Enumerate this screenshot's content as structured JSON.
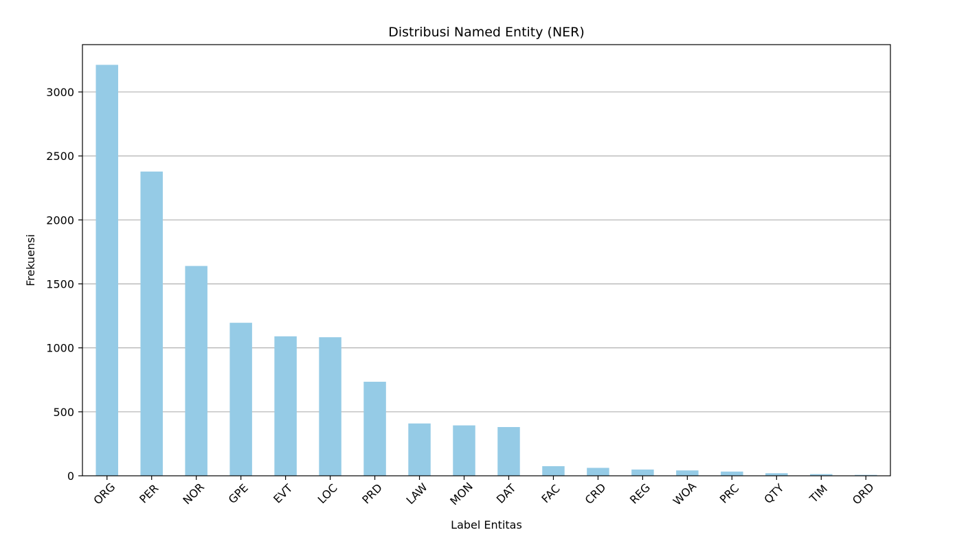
{
  "chart_data": {
    "type": "bar",
    "title": "Distribusi Named Entity (NER)",
    "xlabel": "Label Entitas",
    "ylabel": "Frekuensi",
    "categories": [
      "ORG",
      "PER",
      "NOR",
      "GPE",
      "EVT",
      "LOC",
      "PRD",
      "LAW",
      "MON",
      "DAT",
      "FAC",
      "CRD",
      "REG",
      "WOA",
      "PRC",
      "QTY",
      "TIM",
      "ORD"
    ],
    "values": [
      3212,
      2378,
      1640,
      1196,
      1090,
      1083,
      735,
      409,
      394,
      381,
      75,
      62,
      49,
      42,
      33,
      20,
      13,
      7
    ],
    "yticks": [
      0,
      500,
      1000,
      1500,
      2000,
      2500,
      3000
    ],
    "ylim": [
      0,
      3370
    ],
    "grid": "y",
    "bar_color": "#95cbe6",
    "grid_color": "#b0b0b0",
    "legend": "none"
  }
}
